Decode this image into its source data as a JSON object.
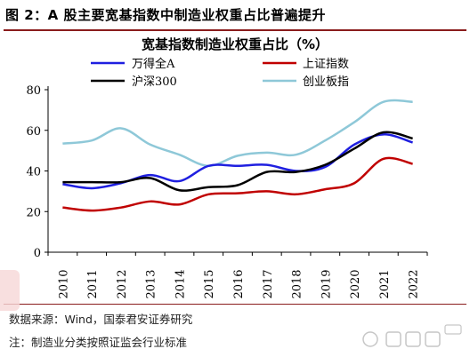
{
  "figure": {
    "title": "图 2：A 股主要宽基指数中制造业权重占比普遍提升",
    "source": "数据来源：Wind，国泰君安证券研究",
    "note": "注：制造业分类按照证监会行业标准"
  },
  "chart_data": {
    "type": "line",
    "title": "宽基指数制造业权重占比（%）",
    "xlabel": "",
    "ylabel": "",
    "x": [
      "2010",
      "2011",
      "2012",
      "2013",
      "2014",
      "2015",
      "2016",
      "2017",
      "2018",
      "2019",
      "2020",
      "2021",
      "2022"
    ],
    "ylim": [
      0,
      80
    ],
    "yticks": [
      0,
      20,
      40,
      60,
      80
    ],
    "grid": false,
    "legend_position": "top",
    "series": [
      {
        "name": "万得全A",
        "color": "#1f1fe0",
        "values": [
          33.5,
          31.5,
          34,
          38,
          35,
          42.5,
          42.5,
          43,
          40,
          42,
          53,
          58,
          54
        ]
      },
      {
        "name": "上证指数",
        "color": "#c00000",
        "values": [
          22,
          20.5,
          22,
          25,
          23.5,
          28.5,
          29,
          30,
          28.5,
          31,
          34,
          46,
          43.5
        ]
      },
      {
        "name": "沪深300",
        "color": "#000000",
        "values": [
          34.5,
          34.5,
          34.5,
          36.5,
          30.5,
          32,
          33,
          39.5,
          39.5,
          43,
          51,
          59,
          56
        ]
      },
      {
        "name": "创业板指",
        "color": "#8ec8d8",
        "values": [
          53.5,
          55,
          61,
          53,
          48,
          42.5,
          47.5,
          49,
          48,
          55,
          64,
          74,
          74
        ]
      }
    ]
  }
}
